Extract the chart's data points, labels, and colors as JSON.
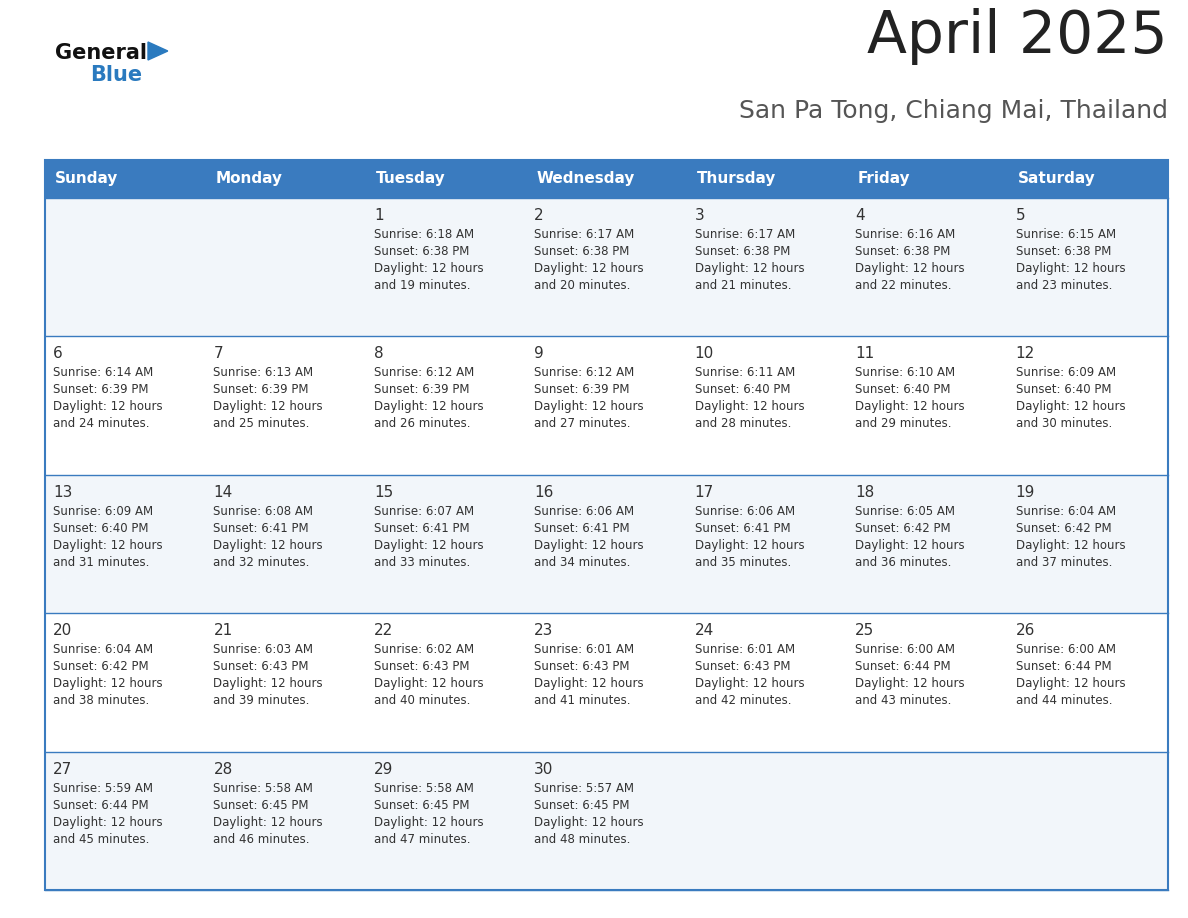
{
  "title": "April 2025",
  "subtitle": "San Pa Tong, Chiang Mai, Thailand",
  "header_bg_color": "#3a7bbf",
  "header_text_color": "#ffffff",
  "day_names": [
    "Sunday",
    "Monday",
    "Tuesday",
    "Wednesday",
    "Thursday",
    "Friday",
    "Saturday"
  ],
  "row_bg_even": "#f2f6fa",
  "row_bg_odd": "#ffffff",
  "grid_line_color": "#3a7bbf",
  "text_color": "#333333",
  "title_color": "#222222",
  "subtitle_color": "#555555",
  "calendar": [
    [
      {
        "day": "",
        "sunrise": "",
        "sunset": "",
        "daylight_hours": "",
        "daylight_minutes": ""
      },
      {
        "day": "",
        "sunrise": "",
        "sunset": "",
        "daylight_hours": "",
        "daylight_minutes": ""
      },
      {
        "day": "1",
        "sunrise": "6:18 AM",
        "sunset": "6:38 PM",
        "daylight_hours": "12",
        "daylight_minutes": "19"
      },
      {
        "day": "2",
        "sunrise": "6:17 AM",
        "sunset": "6:38 PM",
        "daylight_hours": "12",
        "daylight_minutes": "20"
      },
      {
        "day": "3",
        "sunrise": "6:17 AM",
        "sunset": "6:38 PM",
        "daylight_hours": "12",
        "daylight_minutes": "21"
      },
      {
        "day": "4",
        "sunrise": "6:16 AM",
        "sunset": "6:38 PM",
        "daylight_hours": "12",
        "daylight_minutes": "22"
      },
      {
        "day": "5",
        "sunrise": "6:15 AM",
        "sunset": "6:38 PM",
        "daylight_hours": "12",
        "daylight_minutes": "23"
      }
    ],
    [
      {
        "day": "6",
        "sunrise": "6:14 AM",
        "sunset": "6:39 PM",
        "daylight_hours": "12",
        "daylight_minutes": "24"
      },
      {
        "day": "7",
        "sunrise": "6:13 AM",
        "sunset": "6:39 PM",
        "daylight_hours": "12",
        "daylight_minutes": "25"
      },
      {
        "day": "8",
        "sunrise": "6:12 AM",
        "sunset": "6:39 PM",
        "daylight_hours": "12",
        "daylight_minutes": "26"
      },
      {
        "day": "9",
        "sunrise": "6:12 AM",
        "sunset": "6:39 PM",
        "daylight_hours": "12",
        "daylight_minutes": "27"
      },
      {
        "day": "10",
        "sunrise": "6:11 AM",
        "sunset": "6:40 PM",
        "daylight_hours": "12",
        "daylight_minutes": "28"
      },
      {
        "day": "11",
        "sunrise": "6:10 AM",
        "sunset": "6:40 PM",
        "daylight_hours": "12",
        "daylight_minutes": "29"
      },
      {
        "day": "12",
        "sunrise": "6:09 AM",
        "sunset": "6:40 PM",
        "daylight_hours": "12",
        "daylight_minutes": "30"
      }
    ],
    [
      {
        "day": "13",
        "sunrise": "6:09 AM",
        "sunset": "6:40 PM",
        "daylight_hours": "12",
        "daylight_minutes": "31"
      },
      {
        "day": "14",
        "sunrise": "6:08 AM",
        "sunset": "6:41 PM",
        "daylight_hours": "12",
        "daylight_minutes": "32"
      },
      {
        "day": "15",
        "sunrise": "6:07 AM",
        "sunset": "6:41 PM",
        "daylight_hours": "12",
        "daylight_minutes": "33"
      },
      {
        "day": "16",
        "sunrise": "6:06 AM",
        "sunset": "6:41 PM",
        "daylight_hours": "12",
        "daylight_minutes": "34"
      },
      {
        "day": "17",
        "sunrise": "6:06 AM",
        "sunset": "6:41 PM",
        "daylight_hours": "12",
        "daylight_minutes": "35"
      },
      {
        "day": "18",
        "sunrise": "6:05 AM",
        "sunset": "6:42 PM",
        "daylight_hours": "12",
        "daylight_minutes": "36"
      },
      {
        "day": "19",
        "sunrise": "6:04 AM",
        "sunset": "6:42 PM",
        "daylight_hours": "12",
        "daylight_minutes": "37"
      }
    ],
    [
      {
        "day": "20",
        "sunrise": "6:04 AM",
        "sunset": "6:42 PM",
        "daylight_hours": "12",
        "daylight_minutes": "38"
      },
      {
        "day": "21",
        "sunrise": "6:03 AM",
        "sunset": "6:43 PM",
        "daylight_hours": "12",
        "daylight_minutes": "39"
      },
      {
        "day": "22",
        "sunrise": "6:02 AM",
        "sunset": "6:43 PM",
        "daylight_hours": "12",
        "daylight_minutes": "40"
      },
      {
        "day": "23",
        "sunrise": "6:01 AM",
        "sunset": "6:43 PM",
        "daylight_hours": "12",
        "daylight_minutes": "41"
      },
      {
        "day": "24",
        "sunrise": "6:01 AM",
        "sunset": "6:43 PM",
        "daylight_hours": "12",
        "daylight_minutes": "42"
      },
      {
        "day": "25",
        "sunrise": "6:00 AM",
        "sunset": "6:44 PM",
        "daylight_hours": "12",
        "daylight_minutes": "43"
      },
      {
        "day": "26",
        "sunrise": "6:00 AM",
        "sunset": "6:44 PM",
        "daylight_hours": "12",
        "daylight_minutes": "44"
      }
    ],
    [
      {
        "day": "27",
        "sunrise": "5:59 AM",
        "sunset": "6:44 PM",
        "daylight_hours": "12",
        "daylight_minutes": "45"
      },
      {
        "day": "28",
        "sunrise": "5:58 AM",
        "sunset": "6:45 PM",
        "daylight_hours": "12",
        "daylight_minutes": "46"
      },
      {
        "day": "29",
        "sunrise": "5:58 AM",
        "sunset": "6:45 PM",
        "daylight_hours": "12",
        "daylight_minutes": "47"
      },
      {
        "day": "30",
        "sunrise": "5:57 AM",
        "sunset": "6:45 PM",
        "daylight_hours": "12",
        "daylight_minutes": "48"
      },
      {
        "day": "",
        "sunrise": "",
        "sunset": "",
        "daylight_hours": "",
        "daylight_minutes": ""
      },
      {
        "day": "",
        "sunrise": "",
        "sunset": "",
        "daylight_hours": "",
        "daylight_minutes": ""
      },
      {
        "day": "",
        "sunrise": "",
        "sunset": "",
        "daylight_hours": "",
        "daylight_minutes": ""
      }
    ]
  ],
  "logo_color_general": "#111111",
  "logo_color_blue": "#2a7abf"
}
